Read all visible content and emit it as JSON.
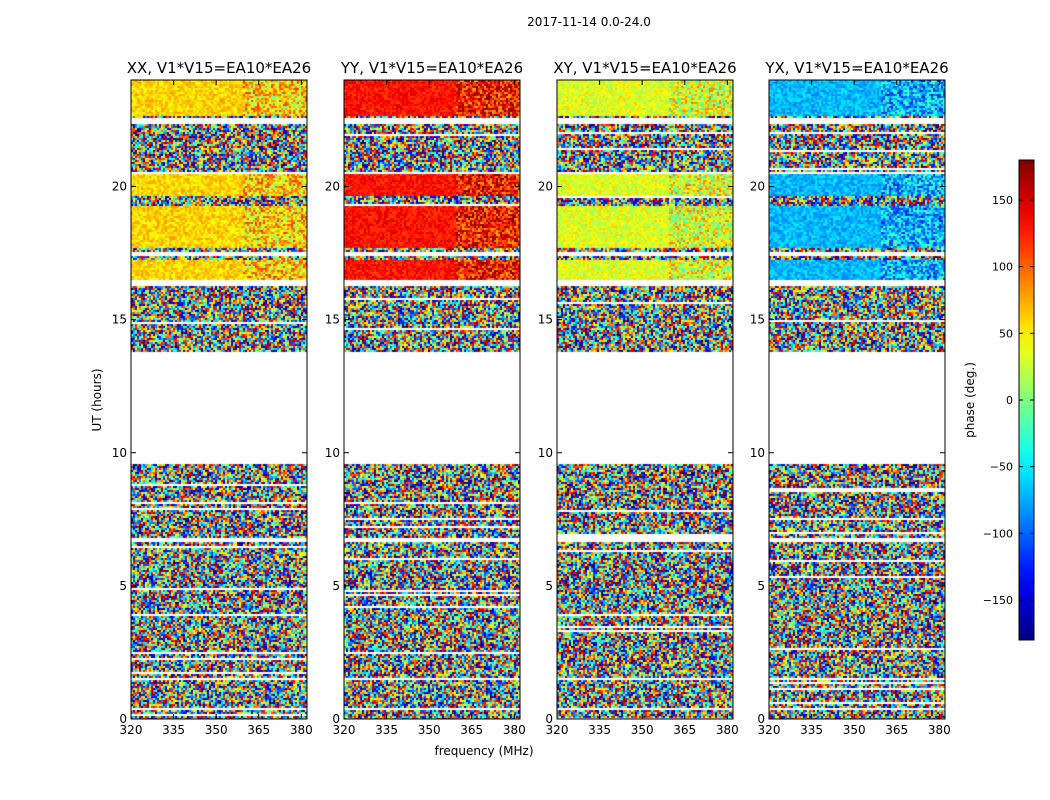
{
  "chart_data": {
    "type": "heatmap",
    "suptitle": "2017-11-14 0.0-24.0",
    "xlabel": "frequency (MHz)",
    "ylabel": "UT (hours)",
    "colorbar_label": "phase (deg.)",
    "colorbar_ticks": [
      150,
      100,
      50,
      0,
      -50,
      -100,
      -150
    ],
    "colorbar_range": [
      -180,
      180
    ],
    "colormap": "jet",
    "xlim": [
      320,
      382
    ],
    "ylim": [
      0,
      24
    ],
    "xticks": [
      320,
      335,
      350,
      365,
      380
    ],
    "yticks": [
      0,
      5,
      10,
      15,
      20
    ],
    "panels": [
      {
        "title": "XX, V1*V15=EA10*EA26",
        "pol": "XX",
        "quiet_phase": 60,
        "quiet_spread": 45
      },
      {
        "title": "YY, V1*V15=EA10*EA26",
        "pol": "YY",
        "quiet_phase": 130,
        "quiet_spread": 40
      },
      {
        "title": "XY, V1*V15=EA10*EA26",
        "pol": "XY",
        "quiet_phase": 35,
        "quiet_spread": 55
      },
      {
        "title": "YX, V1*V15=EA10*EA26",
        "pol": "YX",
        "quiet_phase": -70,
        "quiet_spread": 45
      }
    ],
    "flagged_gaps_ut": [
      [
        9.6,
        13.8
      ],
      [
        22.4,
        22.6
      ],
      [
        17.4,
        17.6
      ],
      [
        16.3,
        16.5
      ],
      [
        20.5,
        20.6
      ],
      [
        6.7,
        6.8
      ],
      [
        1.5,
        1.6
      ],
      [
        0.35,
        0.45
      ]
    ],
    "coherent_blocks_ut": [
      [
        16.5,
        17.3
      ],
      [
        17.7,
        19.3
      ],
      [
        19.7,
        20.6
      ],
      [
        22.7,
        24.0
      ]
    ],
    "colors": {
      "background": "#ffffff",
      "axes": "#000000"
    }
  }
}
